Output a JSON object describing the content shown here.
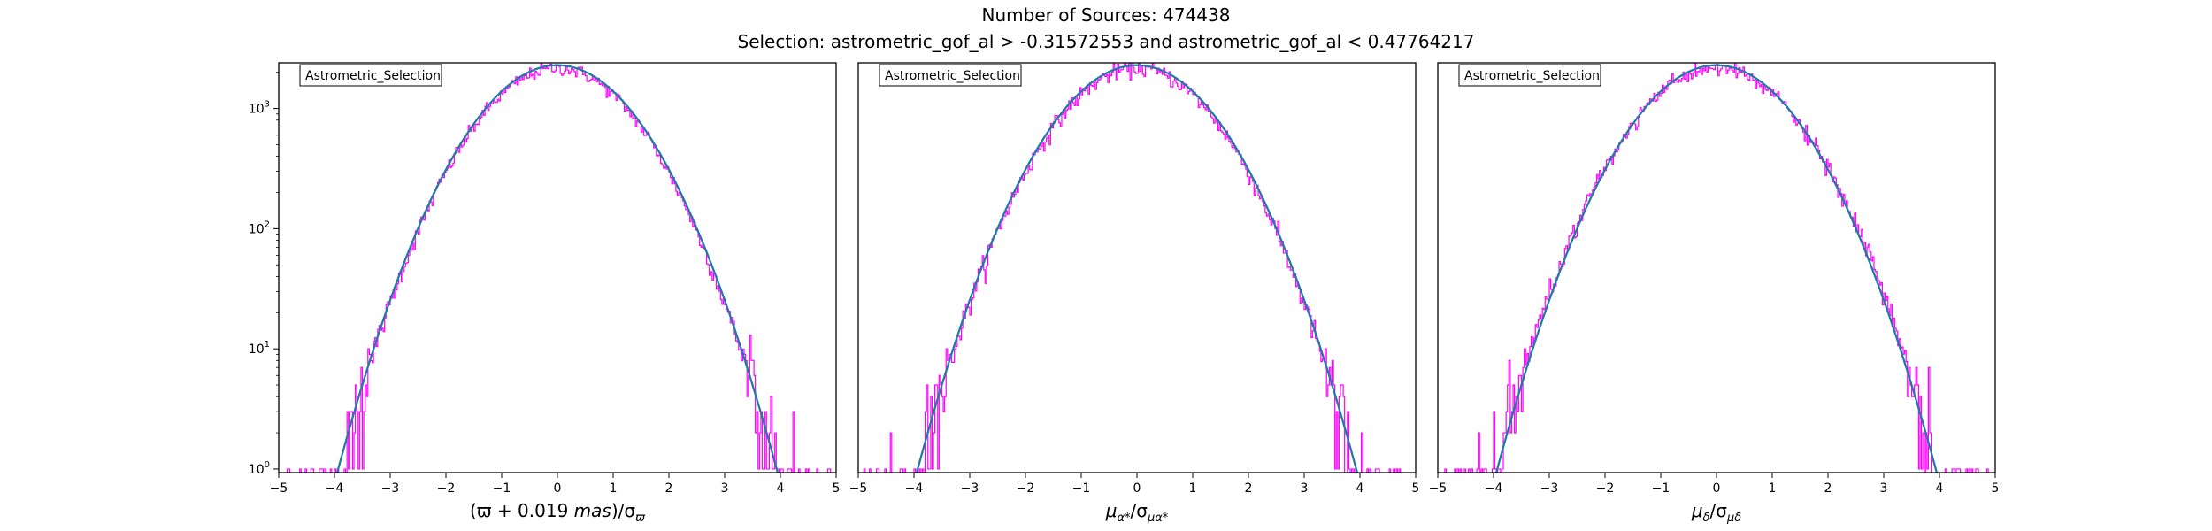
{
  "figure": {
    "title": "Number of Sources: 474438",
    "subtitle": "Selection: astrometric_gof_al > -0.31572553 and astrometric_gof_al < 0.47764217"
  },
  "colors": {
    "histogram": "#ff00ff",
    "fit": "#1f77b4",
    "fit_secondary": "#2ca02c",
    "axes": "#000000"
  },
  "chart_data": [
    {
      "type": "line",
      "xlabel_parts": [
        {
          "t": "(ϖ + 0.019 ",
          "s": "n"
        },
        {
          "t": "mas",
          "s": "i"
        },
        {
          "t": ")/σ",
          "s": "n"
        },
        {
          "t": "ϖ",
          "s": "sub"
        }
      ],
      "xlim": [
        -5,
        5
      ],
      "ylim_log10": [
        -0.03,
        3.38
      ],
      "yscale": "log",
      "xticks": [
        "−5",
        "−4",
        "−3",
        "−2",
        "−1",
        "0",
        "1",
        "2",
        "3",
        "4",
        "5"
      ],
      "yticks": [
        {
          "base": "10",
          "exp": "0",
          "v": 0
        },
        {
          "base": "10",
          "exp": "1",
          "v": 1
        },
        {
          "base": "10",
          "exp": "2",
          "v": 2
        },
        {
          "base": "10",
          "exp": "3",
          "v": 3
        }
      ],
      "legend": {
        "label": "Astrometric_Selection",
        "position": "top-left"
      },
      "grid": false,
      "series": [
        {
          "kind": "histogram",
          "style": "step",
          "peak": 2230,
          "sigma": 1.0,
          "xmin": -5,
          "xmax": 5,
          "bins": 400,
          "noise": 0.12
        },
        {
          "kind": "gaussian_fit",
          "style": "solid",
          "peak": 2290,
          "sigma": 1.0,
          "mu": 0.0
        }
      ]
    },
    {
      "type": "line",
      "xlabel_parts": [
        {
          "t": "μ",
          "s": "i"
        },
        {
          "t": "α*",
          "s": "sub"
        },
        {
          "t": "/σ",
          "s": "n"
        },
        {
          "t": "μα*",
          "s": "sub"
        }
      ],
      "xlim": [
        -5,
        5
      ],
      "ylim_log10": [
        -0.03,
        3.38
      ],
      "yscale": "log",
      "xticks": [
        "−5",
        "−4",
        "−3",
        "−2",
        "−1",
        "0",
        "1",
        "2",
        "3",
        "4",
        "5"
      ],
      "yticks": [],
      "legend": {
        "label": "Astrometric_Selection",
        "position": "top-left"
      },
      "grid": false,
      "series": [
        {
          "kind": "histogram",
          "style": "step",
          "peak": 2230,
          "sigma": 1.0,
          "xmin": -5,
          "xmax": 5,
          "bins": 400,
          "noise": 0.14
        },
        {
          "kind": "gaussian_fit",
          "style": "solid",
          "peak": 2290,
          "sigma": 1.0,
          "mu": 0.0
        }
      ]
    },
    {
      "type": "line",
      "xlabel_parts": [
        {
          "t": "μ",
          "s": "i"
        },
        {
          "t": "δ",
          "s": "sub"
        },
        {
          "t": "/σ",
          "s": "n"
        },
        {
          "t": "μδ",
          "s": "sub"
        }
      ],
      "xlim": [
        -5,
        5
      ],
      "ylim_log10": [
        -0.03,
        3.38
      ],
      "yscale": "log",
      "xticks": [
        "−5",
        "−4",
        "−3",
        "−2",
        "−1",
        "0",
        "1",
        "2",
        "3",
        "4",
        "5"
      ],
      "yticks": [],
      "legend": {
        "label": "Astrometric_Selection",
        "position": "top-left"
      },
      "grid": false,
      "series": [
        {
          "kind": "histogram",
          "style": "step",
          "peak": 2230,
          "sigma": 1.02,
          "xmin": -5,
          "xmax": 5,
          "bins": 400,
          "noise": 0.14
        },
        {
          "kind": "gaussian_fit",
          "style": "solid",
          "peak": 2290,
          "sigma": 1.0,
          "mu": 0.0
        }
      ]
    }
  ]
}
